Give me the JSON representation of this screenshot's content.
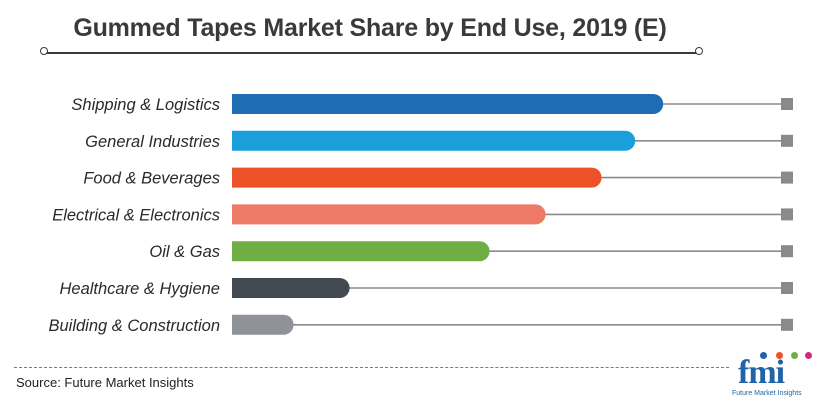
{
  "title": "Gummed Tapes Market Share by End Use, 2019 (E)",
  "source": "Source: Future Market Insights",
  "logo": {
    "text": "fmi",
    "subtitle": "Future Market Insights"
  },
  "chart_data": {
    "type": "bar",
    "orientation": "horizontal",
    "title": "Gummed Tapes Market Share by End Use, 2019 (E)",
    "categories": [
      "Shipping & Logistics",
      "General Industries",
      "Food & Beverages",
      "Electrical & Electronics",
      "Oil & Gas",
      "Healthcare & Hygiene",
      "Building & Construction"
    ],
    "values": [
      77,
      72,
      66,
      56,
      46,
      21,
      11
    ],
    "colors": [
      "#1e6db3",
      "#1a9fdb",
      "#ec5127",
      "#ee7b68",
      "#6fae45",
      "#434951",
      "#8f9398"
    ],
    "xlim": [
      0,
      100
    ],
    "grid": false,
    "legend": "none"
  }
}
